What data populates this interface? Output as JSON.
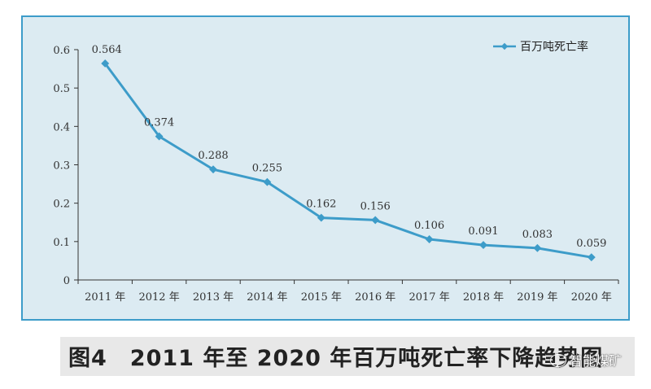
{
  "chart_data": {
    "type": "line",
    "categories": [
      "2011 年",
      "2012 年",
      "2013 年",
      "2014 年",
      "2015 年",
      "2016 年",
      "2017 年",
      "2018 年",
      "2019 年",
      "2020 年"
    ],
    "series": [
      {
        "name": "百万吨死亡率",
        "values": [
          0.564,
          0.374,
          0.288,
          0.255,
          0.162,
          0.156,
          0.106,
          0.091,
          0.083,
          0.059
        ],
        "labels": [
          "0.564",
          "0.374",
          "0.288",
          "0.255",
          "0.162",
          "0.156",
          "0.106",
          "0.091",
          "0.083",
          "0.059"
        ]
      }
    ],
    "yticks": [
      "0",
      "0.1",
      "0.2",
      "0.3",
      "0.4",
      "0.5",
      "0.6"
    ],
    "ylim": [
      0,
      0.6
    ],
    "grid": false,
    "legend_position": "top-right",
    "line_color": "#3d9cc9",
    "background_color": "#dcebf2"
  },
  "caption": {
    "figure_number": "图4",
    "text": "2011 年至 2020 年百万吨死亡率下降趋势图"
  },
  "watermark": {
    "text": "智能煤矿"
  }
}
